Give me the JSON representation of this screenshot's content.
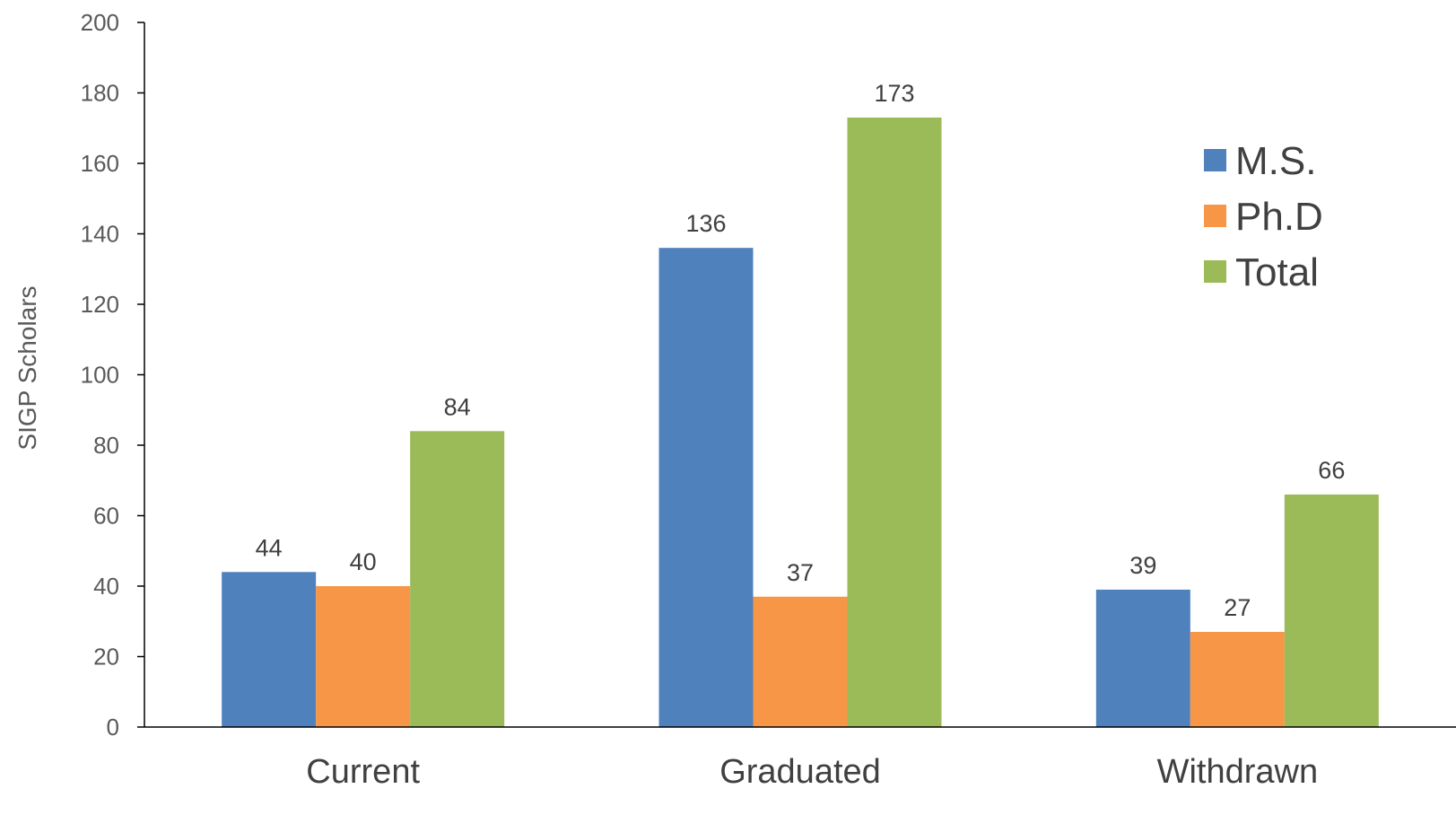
{
  "chart_data": {
    "type": "bar",
    "categories": [
      "Current",
      "Graduated",
      "Withdrawn"
    ],
    "series": [
      {
        "name": "M.S.",
        "values": [
          44,
          136,
          39
        ],
        "color": "#4F81BD"
      },
      {
        "name": "Ph.D",
        "values": [
          40,
          37,
          27
        ],
        "color": "#F79646"
      },
      {
        "name": "Total",
        "values": [
          84,
          173,
          66
        ],
        "color": "#9BBB59"
      }
    ],
    "title": "",
    "xlabel": "",
    "ylabel": "SIGP Scholars",
    "ylim": [
      0,
      200
    ],
    "yticks": [
      0,
      20,
      40,
      60,
      80,
      100,
      120,
      140,
      160,
      180,
      200
    ],
    "grid": false,
    "legend_position": "right",
    "axis_color": "#000000"
  }
}
